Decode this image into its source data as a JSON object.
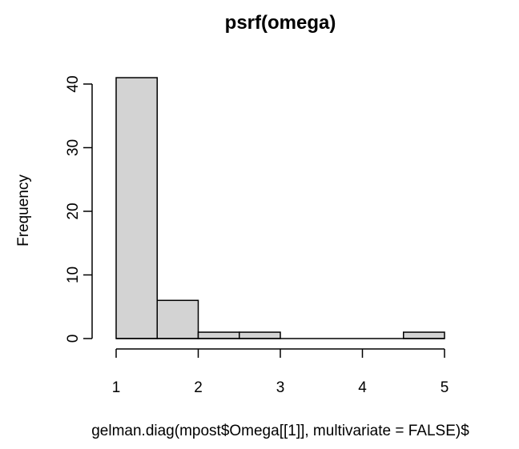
{
  "chart_data": {
    "type": "bar",
    "title": "psrf(omega)",
    "xlabel": "gelman.diag(mpost$Omega[[1]], multivariate = FALSE)$",
    "ylabel": "Frequency",
    "bins": [
      {
        "from": 1.0,
        "to": 1.5,
        "count": 41
      },
      {
        "from": 1.5,
        "to": 2.0,
        "count": 6
      },
      {
        "from": 2.0,
        "to": 2.5,
        "count": 1
      },
      {
        "from": 2.5,
        "to": 3.0,
        "count": 1
      },
      {
        "from": 3.0,
        "to": 3.5,
        "count": 0
      },
      {
        "from": 3.5,
        "to": 4.0,
        "count": 0
      },
      {
        "from": 4.0,
        "to": 4.5,
        "count": 0
      },
      {
        "from": 4.5,
        "to": 5.0,
        "count": 1
      }
    ],
    "xlim": [
      1,
      5
    ],
    "ylim": [
      0,
      41
    ],
    "xticks": [
      1,
      2,
      3,
      4,
      5
    ],
    "yticks": [
      0,
      10,
      20,
      30,
      40
    ],
    "bar_color": "#d3d3d3",
    "grid": false
  }
}
